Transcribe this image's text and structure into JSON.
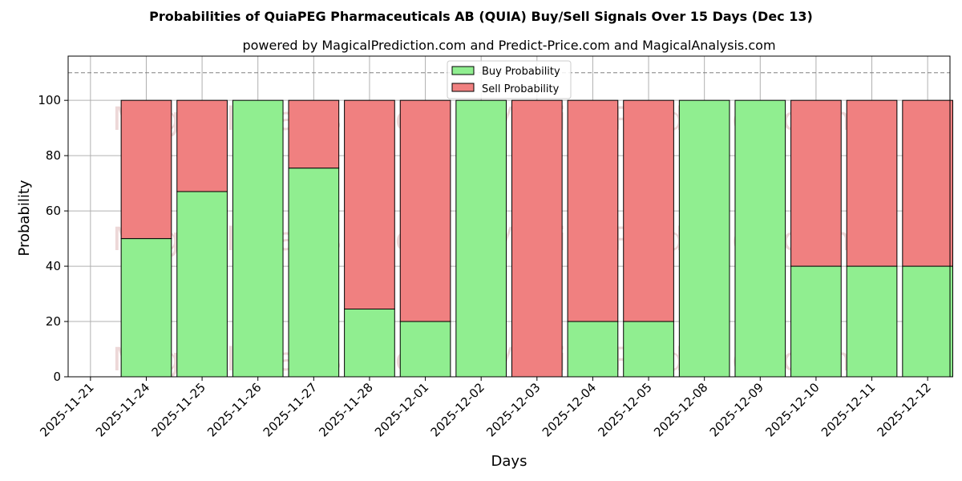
{
  "chart_data": {
    "type": "bar",
    "stacked": true,
    "title": "Probabilities of QuiaPEG Pharmaceuticals AB (QUIA) Buy/Sell Signals Over 15 Days (Dec 13)",
    "subtitle": "powered by MagicalPrediction.com and Predict-Price.com and MagicalAnalysis.com",
    "xlabel": "Days",
    "ylabel": "Probability",
    "ylim": [
      0,
      116
    ],
    "yticks": [
      0,
      20,
      40,
      60,
      80,
      100
    ],
    "reference_line": 110,
    "grid": true,
    "legend_position": "top-center",
    "xtick_labels": [
      "2025-11-21",
      "2025-11-24",
      "2025-11-25",
      "2025-11-26",
      "2025-11-27",
      "2025-11-28",
      "2025-12-01",
      "2025-12-02",
      "2025-12-03",
      "2025-12-04",
      "2025-12-05",
      "2025-12-08",
      "2025-12-09",
      "2025-12-10",
      "2025-12-11",
      "2025-12-12"
    ],
    "categories": [
      "2025-11-24",
      "2025-11-25",
      "2025-11-26",
      "2025-11-27",
      "2025-11-28",
      "2025-12-01",
      "2025-12-02",
      "2025-12-03",
      "2025-12-04",
      "2025-12-05",
      "2025-12-08",
      "2025-12-09",
      "2025-12-10",
      "2025-12-11",
      "2025-12-12"
    ],
    "series": [
      {
        "name": "Buy Probability",
        "color": "#90ee90",
        "values": [
          50,
          67,
          100,
          75.5,
          24.5,
          20,
          100,
          0,
          20,
          20,
          100,
          100,
          40,
          40,
          40
        ]
      },
      {
        "name": "Sell Probability",
        "color": "#f08080",
        "values": [
          50,
          33,
          0,
          24.5,
          75.5,
          80,
          0,
          100,
          80,
          80,
          0,
          0,
          60,
          60,
          60
        ]
      }
    ],
    "watermarks": [
      "MagicalAnalysis.com",
      "MagicalPrediction.com",
      "MagicalAnalysis.com",
      "MagicalPrediction.com",
      "MagicalAnalysis.com",
      "MagicalPrediction.com"
    ]
  }
}
